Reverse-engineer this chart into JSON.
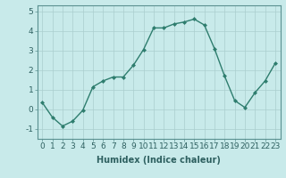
{
  "x": [
    0,
    1,
    2,
    3,
    4,
    5,
    6,
    7,
    8,
    9,
    10,
    11,
    12,
    13,
    14,
    15,
    16,
    17,
    18,
    19,
    20,
    21,
    22,
    23
  ],
  "y": [
    0.35,
    -0.4,
    -0.85,
    -0.6,
    -0.05,
    1.15,
    1.45,
    1.65,
    1.65,
    2.25,
    3.05,
    4.15,
    4.15,
    4.35,
    4.45,
    4.6,
    4.3,
    3.1,
    1.7,
    0.45,
    0.1,
    0.85,
    1.45,
    2.35
  ],
  "line_color": "#2e7d6e",
  "marker": "D",
  "markersize": 2.0,
  "linewidth": 1.0,
  "bg_color": "#c8eaea",
  "grid_color": "#aacece",
  "xlabel": "Humidex (Indice chaleur)",
  "xlabel_fontsize": 7.0,
  "xlabel_bold": true,
  "yticks": [
    -1,
    0,
    1,
    2,
    3,
    4,
    5
  ],
  "ylim": [
    -1.5,
    5.3
  ],
  "xlim": [
    -0.5,
    23.5
  ],
  "tick_fontsize": 6.5,
  "title": ""
}
